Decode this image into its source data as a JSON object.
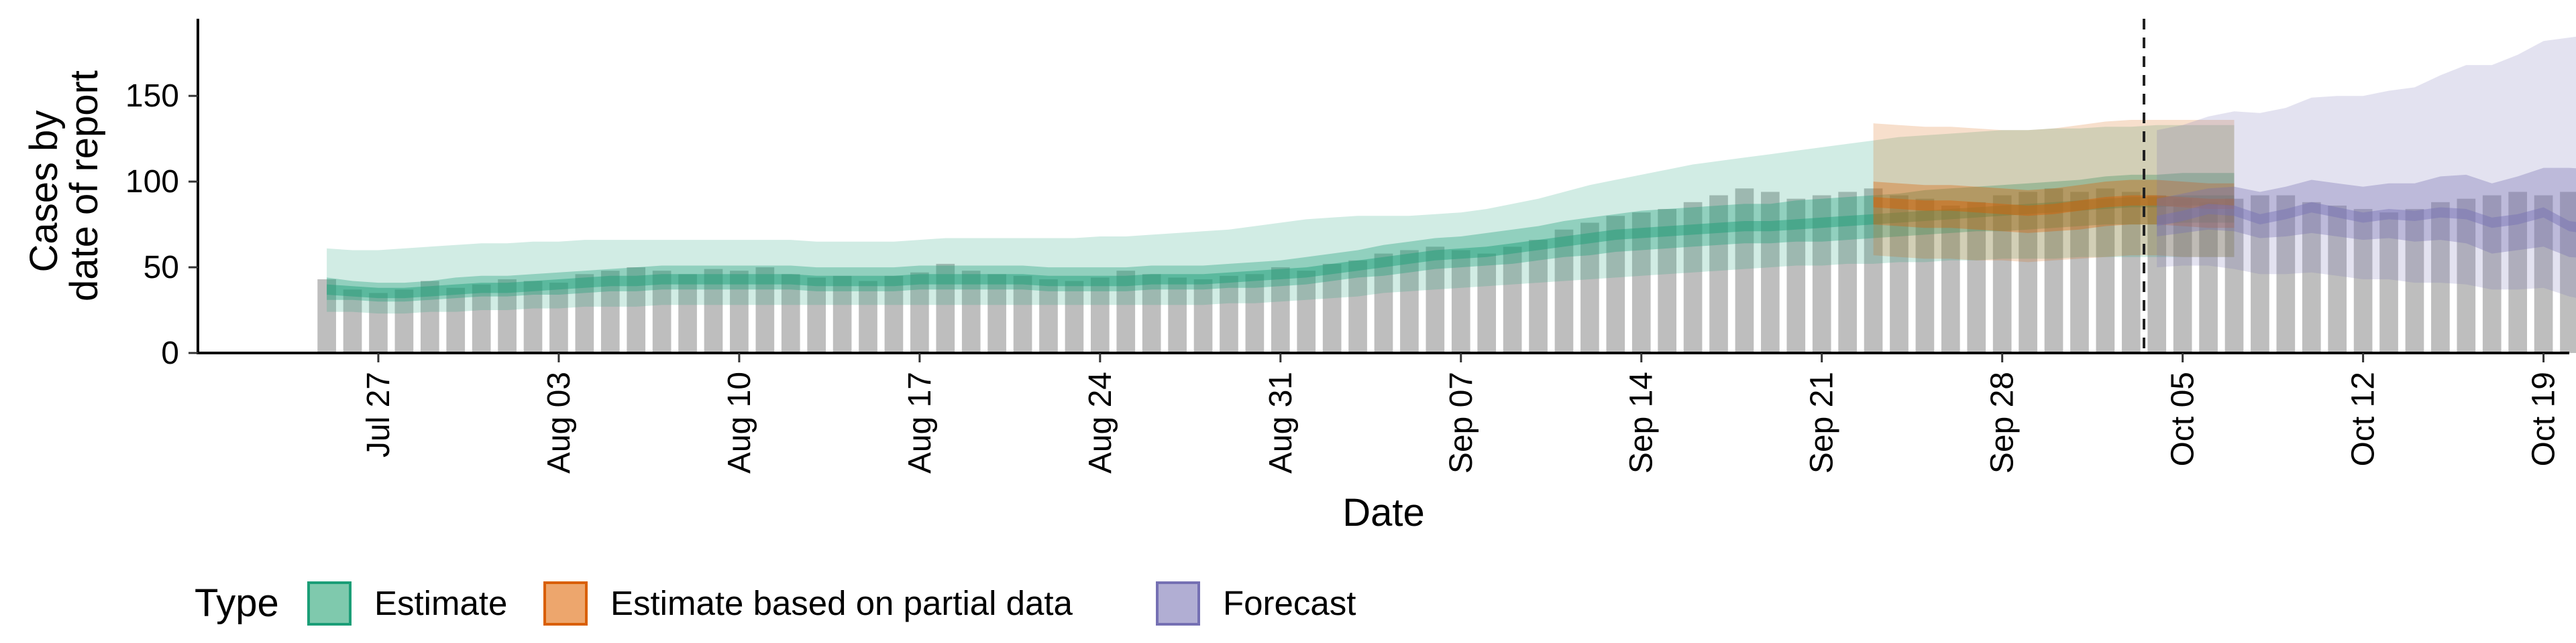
{
  "chart_data": {
    "type": "bar",
    "title": "",
    "xlabel": "Date",
    "ylabel": [
      "Cases by",
      "date of report"
    ],
    "ylim": [
      0,
      195
    ],
    "y_ticks": [
      0,
      50,
      100,
      150
    ],
    "x_tick_labels": [
      "Jul 27",
      "Aug 03",
      "Aug 10",
      "Aug 17",
      "Aug 24",
      "Aug 31",
      "Sep 07",
      "Sep 14",
      "Sep 21",
      "Sep 28",
      "Oct 05",
      "Oct 12",
      "Oct 19"
    ],
    "x_tick_dates": [
      "2020-07-27",
      "2020-08-03",
      "2020-08-10",
      "2020-08-17",
      "2020-08-24",
      "2020-08-31",
      "2020-09-07",
      "2020-09-14",
      "2020-09-21",
      "2020-09-28",
      "2020-10-05",
      "2020-10-12",
      "2020-10-19"
    ],
    "x_range": [
      "2020-07-20",
      "2020-10-20"
    ],
    "grid": false,
    "forecast_date": "2020-10-03",
    "legend": {
      "title": "Type",
      "position": "bottom-left",
      "entries": [
        {
          "label": "Estimate",
          "fill": "#7fc9ad",
          "stroke": "#1b9e77"
        },
        {
          "label": "Estimate based on partial data",
          "fill": "#eda66d",
          "stroke": "#d95f02"
        },
        {
          "label": "Forecast",
          "fill": "#b1aed3",
          "stroke": "#7570b3"
        }
      ]
    },
    "colors": {
      "observed_bars": "#bebebe",
      "estimate": "#1b9e77",
      "partial": "#d95f02",
      "forecast": "#7570b3"
    },
    "observed_start_date": "2020-07-25",
    "observed_cases": [
      43,
      37,
      35,
      37,
      42,
      38,
      40,
      43,
      42,
      41,
      46,
      48,
      50,
      48,
      46,
      49,
      48,
      50,
      46,
      44,
      45,
      42,
      45,
      47,
      52,
      48,
      46,
      45,
      43,
      42,
      44,
      48,
      46,
      44,
      43,
      45,
      46,
      50,
      48,
      52,
      54,
      58,
      60,
      62,
      60,
      58,
      62,
      66,
      72,
      76,
      80,
      82,
      84,
      88,
      92,
      96,
      94,
      90,
      92,
      94,
      96,
      92,
      90,
      86,
      88,
      92,
      94,
      96,
      94,
      96,
      94,
      92,
      90,
      88,
      90,
      92,
      92,
      88,
      86,
      84,
      82,
      84,
      88,
      90,
      92,
      94,
      92,
      94,
      94
    ],
    "series": [
      {
        "name": "Estimate",
        "start_date": "2020-07-25",
        "median": [
          37,
          36,
          35,
          35,
          36,
          37,
          38,
          38,
          39,
          40,
          41,
          42,
          42,
          43,
          43,
          43,
          43,
          43,
          43,
          42,
          42,
          42,
          42,
          43,
          43,
          43,
          43,
          43,
          42,
          42,
          42,
          42,
          43,
          43,
          43,
          44,
          45,
          46,
          47,
          49,
          51,
          53,
          55,
          57,
          58,
          59,
          61,
          63,
          65,
          67,
          69,
          70,
          71,
          72,
          73,
          74,
          74,
          75,
          76,
          77,
          78,
          79,
          80,
          81,
          82,
          83,
          84,
          85,
          86,
          87,
          88,
          88,
          89,
          89,
          89
        ],
        "low_50": [
          31,
          31,
          30,
          30,
          31,
          32,
          33,
          33,
          34,
          34,
          35,
          36,
          36,
          37,
          37,
          37,
          37,
          37,
          37,
          36,
          36,
          36,
          36,
          37,
          37,
          37,
          37,
          37,
          36,
          36,
          36,
          36,
          37,
          37,
          37,
          38,
          38,
          39,
          40,
          42,
          44,
          45,
          47,
          49,
          50,
          51,
          52,
          54,
          56,
          57,
          59,
          60,
          61,
          62,
          63,
          64,
          64,
          65,
          65,
          66,
          67,
          68,
          69,
          70,
          71,
          71,
          72,
          73,
          74,
          75,
          75,
          75,
          76,
          76,
          76
        ],
        "high_50": [
          44,
          42,
          41,
          41,
          42,
          44,
          45,
          45,
          46,
          47,
          48,
          49,
          50,
          51,
          51,
          51,
          51,
          51,
          51,
          50,
          50,
          50,
          50,
          51,
          51,
          51,
          51,
          51,
          50,
          50,
          50,
          50,
          51,
          51,
          51,
          52,
          53,
          54,
          56,
          58,
          60,
          63,
          65,
          67,
          68,
          70,
          72,
          74,
          77,
          79,
          81,
          83,
          84,
          85,
          86,
          87,
          87,
          89,
          90,
          91,
          92,
          93,
          95,
          96,
          97,
          98,
          99,
          100,
          101,
          103,
          104,
          104,
          105,
          105,
          105
        ],
        "low_90": [
          24,
          24,
          23,
          23,
          24,
          24,
          25,
          25,
          26,
          26,
          27,
          27,
          27,
          28,
          28,
          28,
          28,
          28,
          28,
          28,
          28,
          28,
          28,
          28,
          28,
          28,
          28,
          28,
          28,
          28,
          28,
          28,
          28,
          28,
          28,
          29,
          29,
          30,
          31,
          32,
          33,
          35,
          36,
          37,
          38,
          39,
          40,
          41,
          42,
          43,
          44,
          45,
          46,
          47,
          48,
          49,
          50,
          51,
          51,
          52,
          52,
          53,
          53,
          54,
          54,
          55,
          55,
          55,
          56,
          56,
          56,
          56,
          56,
          56,
          56
        ],
        "high_90": [
          61,
          60,
          60,
          61,
          62,
          63,
          64,
          64,
          65,
          65,
          66,
          66,
          66,
          66,
          66,
          66,
          66,
          66,
          66,
          65,
          65,
          65,
          65,
          66,
          67,
          67,
          67,
          67,
          67,
          67,
          68,
          68,
          69,
          70,
          71,
          72,
          74,
          76,
          78,
          79,
          80,
          80,
          80,
          81,
          82,
          84,
          87,
          90,
          94,
          98,
          101,
          104,
          107,
          110,
          112,
          114,
          116,
          118,
          120,
          122,
          124,
          126,
          127,
          128,
          129,
          130,
          130,
          131,
          131,
          132,
          132,
          133,
          133,
          133,
          133
        ]
      },
      {
        "name": "Estimate based on partial data",
        "start_date": "2020-09-23",
        "median": [
          88,
          87,
          86,
          86,
          85,
          84,
          83,
          84,
          86,
          88,
          89,
          89,
          88,
          87,
          87
        ],
        "low_50": [
          75,
          74,
          73,
          73,
          72,
          71,
          70,
          71,
          72,
          74,
          75,
          75,
          74,
          73,
          73
        ],
        "high_50": [
          100,
          99,
          98,
          98,
          97,
          96,
          95,
          96,
          98,
          100,
          101,
          101,
          100,
          99,
          99
        ],
        "low_90": [
          57,
          56,
          55,
          55,
          54,
          54,
          53,
          54,
          55,
          56,
          57,
          57,
          56,
          56,
          56
        ],
        "high_90": [
          134,
          133,
          132,
          132,
          131,
          130,
          130,
          131,
          133,
          135,
          136,
          136,
          136,
          136,
          136
        ]
      },
      {
        "name": "Forecast",
        "start_date": "2020-10-04",
        "median": [
          77,
          80,
          84,
          83,
          78,
          81,
          85,
          82,
          79,
          81,
          80,
          82,
          81,
          76,
          78,
          82,
          74,
          72
        ],
        "low_50": [
          68,
          70,
          72,
          71,
          67,
          68,
          70,
          68,
          66,
          67,
          65,
          66,
          64,
          58,
          60,
          62,
          56,
          55
        ],
        "high_50": [
          90,
          93,
          96,
          97,
          94,
          97,
          101,
          99,
          97,
          99,
          99,
          103,
          104,
          99,
          103,
          108,
          108,
          107
        ],
        "low_90": [
          50,
          51,
          51,
          49,
          46,
          46,
          47,
          45,
          43,
          43,
          41,
          41,
          40,
          37,
          37,
          38,
          33,
          30
        ],
        "high_90": [
          130,
          133,
          138,
          141,
          140,
          143,
          149,
          150,
          150,
          153,
          155,
          162,
          168,
          168,
          174,
          182,
          184,
          186
        ]
      }
    ]
  }
}
